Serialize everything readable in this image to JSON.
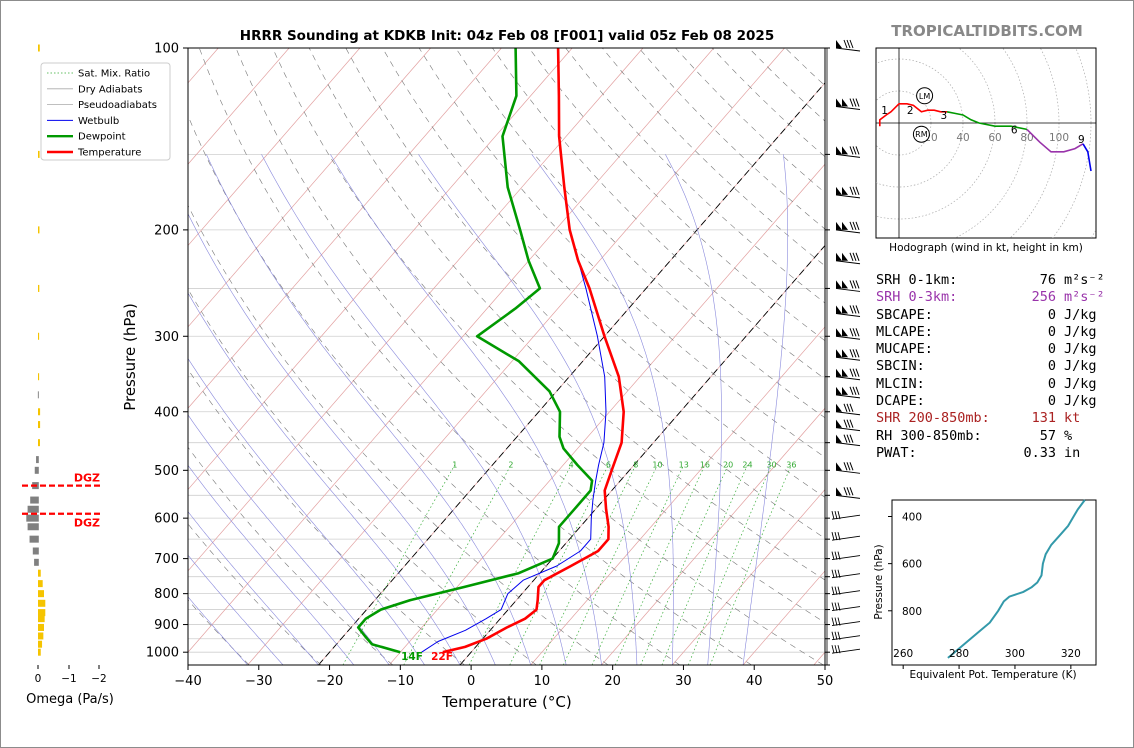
{
  "header": {
    "title": "HRRR Sounding at KDKB Init: 04z Feb 08 [F001] valid 05z Feb 08 2025",
    "brand": "TROPICALTIDBITS.COM"
  },
  "colors": {
    "temperature": "#ff0000",
    "dewpoint": "#009900",
    "wetbulb": "#0000ee",
    "dgz": "#ff0000",
    "omega_pos": "#f5c400",
    "omega_neg": "#808080",
    "theta_e": "#3399aa",
    "srh3": "#9933aa",
    "shear": "#aa2222"
  },
  "chart_data": [
    {
      "type": "line",
      "name": "skew-t",
      "xlabel": "Temperature (°C)",
      "ylabel": "Pressure (hPa)",
      "xlim": [
        -40,
        50
      ],
      "ylim": [
        1050,
        100
      ],
      "y_scale": "log",
      "x_ticks": [
        "−40",
        "−30",
        "−20",
        "−10",
        "0",
        "10",
        "20",
        "30",
        "40",
        "50"
      ],
      "y_ticks": [
        "100",
        "200",
        "300",
        "400",
        "500",
        "600",
        "700",
        "800",
        "900",
        "1000"
      ],
      "legend": [
        "Sat. Mix. Ratio",
        "Dry Adiabats",
        "Pseudoadiabats",
        "Wetbulb",
        "Dewpoint",
        "Temperature"
      ],
      "mix_ratio_labels": [
        "1",
        "2",
        "4",
        "6",
        "8",
        "10",
        "13",
        "16",
        "20",
        "24",
        "30",
        "36"
      ],
      "series": [
        {
          "name": "Temperature",
          "points": [
            [
              1000,
              -4
            ],
            [
              980,
              -1.5
            ],
            [
              950,
              0.5
            ],
            [
              910,
              2
            ],
            [
              880,
              3.5
            ],
            [
              850,
              4
            ],
            [
              820,
              3
            ],
            [
              780,
              1.5
            ],
            [
              760,
              1.5
            ],
            [
              720,
              3.5
            ],
            [
              680,
              5.5
            ],
            [
              650,
              5.5
            ],
            [
              620,
              4
            ],
            [
              580,
              1.5
            ],
            [
              540,
              -1
            ],
            [
              500,
              -2.5
            ],
            [
              450,
              -4.5
            ],
            [
              400,
              -8
            ],
            [
              350,
              -13
            ],
            [
              300,
              -20
            ],
            [
              250,
              -28
            ],
            [
              225,
              -33
            ],
            [
              200,
              -38
            ],
            [
              170,
              -44
            ],
            [
              140,
              -51
            ],
            [
              120,
              -56
            ],
            [
              100,
              -62
            ]
          ]
        },
        {
          "name": "Dewpoint",
          "points": [
            [
              1000,
              -10
            ],
            [
              970,
              -15
            ],
            [
              940,
              -17
            ],
            [
              910,
              -19
            ],
            [
              880,
              -19
            ],
            [
              850,
              -18
            ],
            [
              820,
              -15
            ],
            [
              780,
              -9
            ],
            [
              740,
              -3
            ],
            [
              700,
              0
            ],
            [
              660,
              -1
            ],
            [
              620,
              -3
            ],
            [
              580,
              -3
            ],
            [
              540,
              -3
            ],
            [
              520,
              -4
            ],
            [
              490,
              -8
            ],
            [
              460,
              -12
            ],
            [
              440,
              -14
            ],
            [
              400,
              -17
            ],
            [
              370,
              -21
            ],
            [
              330,
              -29
            ],
            [
              300,
              -38
            ],
            [
              270,
              -36
            ],
            [
              250,
              -35
            ],
            [
              225,
              -40
            ],
            [
              200,
              -45
            ],
            [
              170,
              -52
            ],
            [
              140,
              -59
            ],
            [
              120,
              -62
            ],
            [
              100,
              -68
            ]
          ]
        },
        {
          "name": "Wetbulb",
          "points": [
            [
              1000,
              -7
            ],
            [
              960,
              -6
            ],
            [
              920,
              -3.5
            ],
            [
              880,
              -2
            ],
            [
              850,
              -1
            ],
            [
              800,
              -2
            ],
            [
              760,
              -1.5
            ],
            [
              720,
              1.5
            ],
            [
              680,
              3
            ],
            [
              650,
              3
            ],
            [
              600,
              0.5
            ],
            [
              560,
              -1.5
            ],
            [
              520,
              -3.5
            ],
            [
              490,
              -5
            ],
            [
              450,
              -7
            ],
            [
              400,
              -10.5
            ],
            [
              350,
              -15
            ],
            [
              300,
              -21
            ],
            [
              250,
              -28.5
            ],
            [
              225,
              -33
            ],
            [
              200,
              -38
            ],
            [
              170,
              -44
            ],
            [
              140,
              -51
            ],
            [
              120,
              -56
            ],
            [
              100,
              -62
            ]
          ]
        }
      ],
      "annotations": [
        "14F",
        "22F"
      ]
    },
    {
      "type": "bar",
      "name": "omega",
      "xlabel": "Omega (Pa/s)",
      "x_ticks": [
        "0",
        "−1",
        "−2"
      ],
      "dgz_label": "DGZ"
    },
    {
      "type": "line",
      "name": "hodograph",
      "title": "Hodograph (wind in kt, height in km)",
      "ring_labels": [
        "20",
        "40",
        "60",
        "80",
        "100"
      ],
      "height_labels": [
        "1",
        "2",
        "3",
        "6",
        "9"
      ],
      "markers": [
        "LM",
        "RM"
      ],
      "series": [
        {
          "name": "0-3 km",
          "color": "#ff0000",
          "points": [
            [
              -12,
              -2
            ],
            [
              -12,
              2
            ],
            [
              -8,
              5
            ],
            [
              -5,
              7
            ],
            [
              0,
              12
            ],
            [
              5,
              12
            ],
            [
              9,
              11
            ],
            [
              14,
              7
            ],
            [
              18,
              8
            ],
            [
              22,
              8
            ],
            [
              26,
              7
            ],
            [
              30,
              7
            ]
          ]
        },
        {
          "name": "3-6 km",
          "color": "#009900",
          "points": [
            [
              30,
              7
            ],
            [
              35,
              6
            ],
            [
              40,
              5
            ],
            [
              45,
              2
            ],
            [
              50,
              0
            ],
            [
              60,
              -2
            ],
            [
              70,
              -2
            ],
            [
              80,
              -4
            ]
          ]
        },
        {
          "name": "6-9 km",
          "color": "#9933aa",
          "points": [
            [
              80,
              -4
            ],
            [
              88,
              -12
            ],
            [
              95,
              -18
            ],
            [
              103,
              -18
            ],
            [
              110,
              -16
            ],
            [
              115,
              -13
            ]
          ]
        },
        {
          "name": "9+ km",
          "color": "#0000ee",
          "points": [
            [
              115,
              -13
            ],
            [
              118,
              -18
            ],
            [
              120,
              -30
            ]
          ]
        }
      ]
    },
    {
      "type": "line",
      "name": "theta-e",
      "xlabel": "Equivalent Pot. Temperature (K)",
      "ylabel": "Pressure (hPa)",
      "xlim": [
        256,
        329
      ],
      "ylim": [
        1030,
        330
      ],
      "x_ticks": [
        "260",
        "280",
        "300",
        "320"
      ],
      "y_ticks": [
        "400",
        "600",
        "800"
      ],
      "series": [
        {
          "name": "Theta-E",
          "points": [
            [
              1000,
              276
            ],
            [
              990,
              277
            ],
            [
              970,
              279
            ],
            [
              930,
              283
            ],
            [
              890,
              287
            ],
            [
              850,
              291
            ],
            [
              800,
              294
            ],
            [
              760,
              296
            ],
            [
              740,
              298
            ],
            [
              720,
              303
            ],
            [
              700,
              306
            ],
            [
              680,
              308
            ],
            [
              650,
              309.5
            ],
            [
              600,
              310
            ],
            [
              560,
              311
            ],
            [
              520,
              313
            ],
            [
              480,
              316
            ],
            [
              440,
              319
            ],
            [
              400,
              321
            ],
            [
              370,
              322.5
            ],
            [
              330,
              325
            ]
          ]
        }
      ]
    }
  ],
  "stats": {
    "rows": [
      {
        "label": "SRH 0-1km:",
        "value": "76",
        "unit": "m²s⁻²",
        "color": "#000000"
      },
      {
        "label": "SRH 0-3km:",
        "value": "256",
        "unit": "m²s⁻²",
        "color": "#9933aa"
      },
      {
        "label": "SBCAPE:",
        "value": "0",
        "unit": "J/kg",
        "color": "#000000"
      },
      {
        "label": "MLCAPE:",
        "value": "0",
        "unit": "J/kg",
        "color": "#000000"
      },
      {
        "label": "MUCAPE:",
        "value": "0",
        "unit": "J/kg",
        "color": "#000000"
      },
      {
        "label": "SBCIN:",
        "value": "0",
        "unit": "J/kg",
        "color": "#000000"
      },
      {
        "label": "MLCIN:",
        "value": "0",
        "unit": "J/kg",
        "color": "#000000"
      },
      {
        "label": "DCAPE:",
        "value": "0",
        "unit": "J/kg",
        "color": "#000000"
      },
      {
        "label": "SHR 200-850mb:",
        "value": "131",
        "unit": "kt",
        "color": "#aa2222"
      },
      {
        "label": "RH 300-850mb:",
        "value": "57",
        "unit": "%",
        "color": "#000000"
      },
      {
        "label": "PWAT:",
        "value": "0.33",
        "unit": "in",
        "color": "#000000"
      }
    ]
  }
}
